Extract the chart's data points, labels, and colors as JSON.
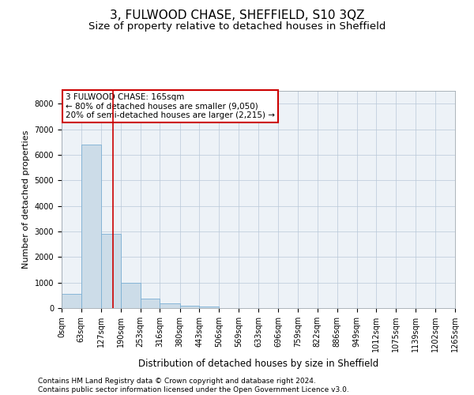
{
  "title": "3, FULWOOD CHASE, SHEFFIELD, S10 3QZ",
  "subtitle": "Size of property relative to detached houses in Sheffield",
  "xlabel": "Distribution of detached houses by size in Sheffield",
  "ylabel": "Number of detached properties",
  "bar_color": "#ccdce8",
  "bar_edge_color": "#7bafd4",
  "vline_color": "#cc0000",
  "annotation_text": "3 FULWOOD CHASE: 165sqm\n← 80% of detached houses are smaller (9,050)\n20% of semi-detached houses are larger (2,215) →",
  "annotation_box_color": "white",
  "annotation_box_edge": "#cc0000",
  "footer_line1": "Contains HM Land Registry data © Crown copyright and database right 2024.",
  "footer_line2": "Contains public sector information licensed under the Open Government Licence v3.0.",
  "bins": [
    0,
    63,
    127,
    190,
    253,
    316,
    380,
    443,
    506,
    569,
    633,
    696,
    759,
    822,
    886,
    949,
    1012,
    1075,
    1139,
    1202,
    1265
  ],
  "bar_heights": [
    560,
    6400,
    2920,
    990,
    360,
    175,
    105,
    70,
    0,
    0,
    0,
    0,
    0,
    0,
    0,
    0,
    0,
    0,
    0,
    0
  ],
  "ylim": [
    0,
    8500
  ],
  "yticks": [
    0,
    1000,
    2000,
    3000,
    4000,
    5000,
    6000,
    7000,
    8000
  ],
  "background_color": "#edf2f7",
  "grid_color": "#b8c8d8",
  "title_fontsize": 11,
  "subtitle_fontsize": 9.5,
  "tick_fontsize": 7,
  "ylabel_fontsize": 8,
  "xlabel_fontsize": 8.5,
  "footer_fontsize": 6.5,
  "annotation_fontsize": 7.5
}
